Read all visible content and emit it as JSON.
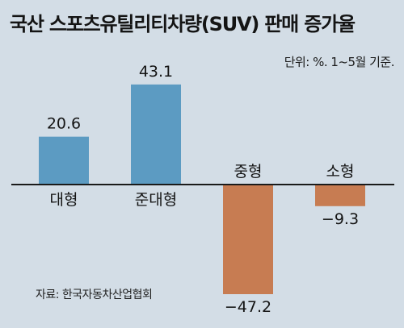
{
  "title": "국산 스포츠유틸리티차량(SUV) 판매 증가율",
  "unit_note": "단위: %. 1~5월 기준.",
  "source": "자료: 한국자동차산업협회",
  "colors": {
    "background": "#d3dde6",
    "positive_bar": "#5c9bc2",
    "negative_bar": "#c77c52",
    "baseline": "#1a1a1a"
  },
  "chart_data": {
    "type": "bar",
    "categories": [
      "대형",
      "준대형",
      "중형",
      "소형"
    ],
    "values": [
      20.6,
      43.1,
      -47.2,
      -9.3
    ],
    "value_labels": [
      "20.6",
      "43.1",
      "−47.2",
      "−9.3"
    ],
    "title": "국산 스포츠유틸리티차량(SUV) 판매 증가율",
    "xlabel": "",
    "ylabel": "",
    "ylim": [
      -47.2,
      43.1
    ],
    "grid": false,
    "legend": "none"
  }
}
